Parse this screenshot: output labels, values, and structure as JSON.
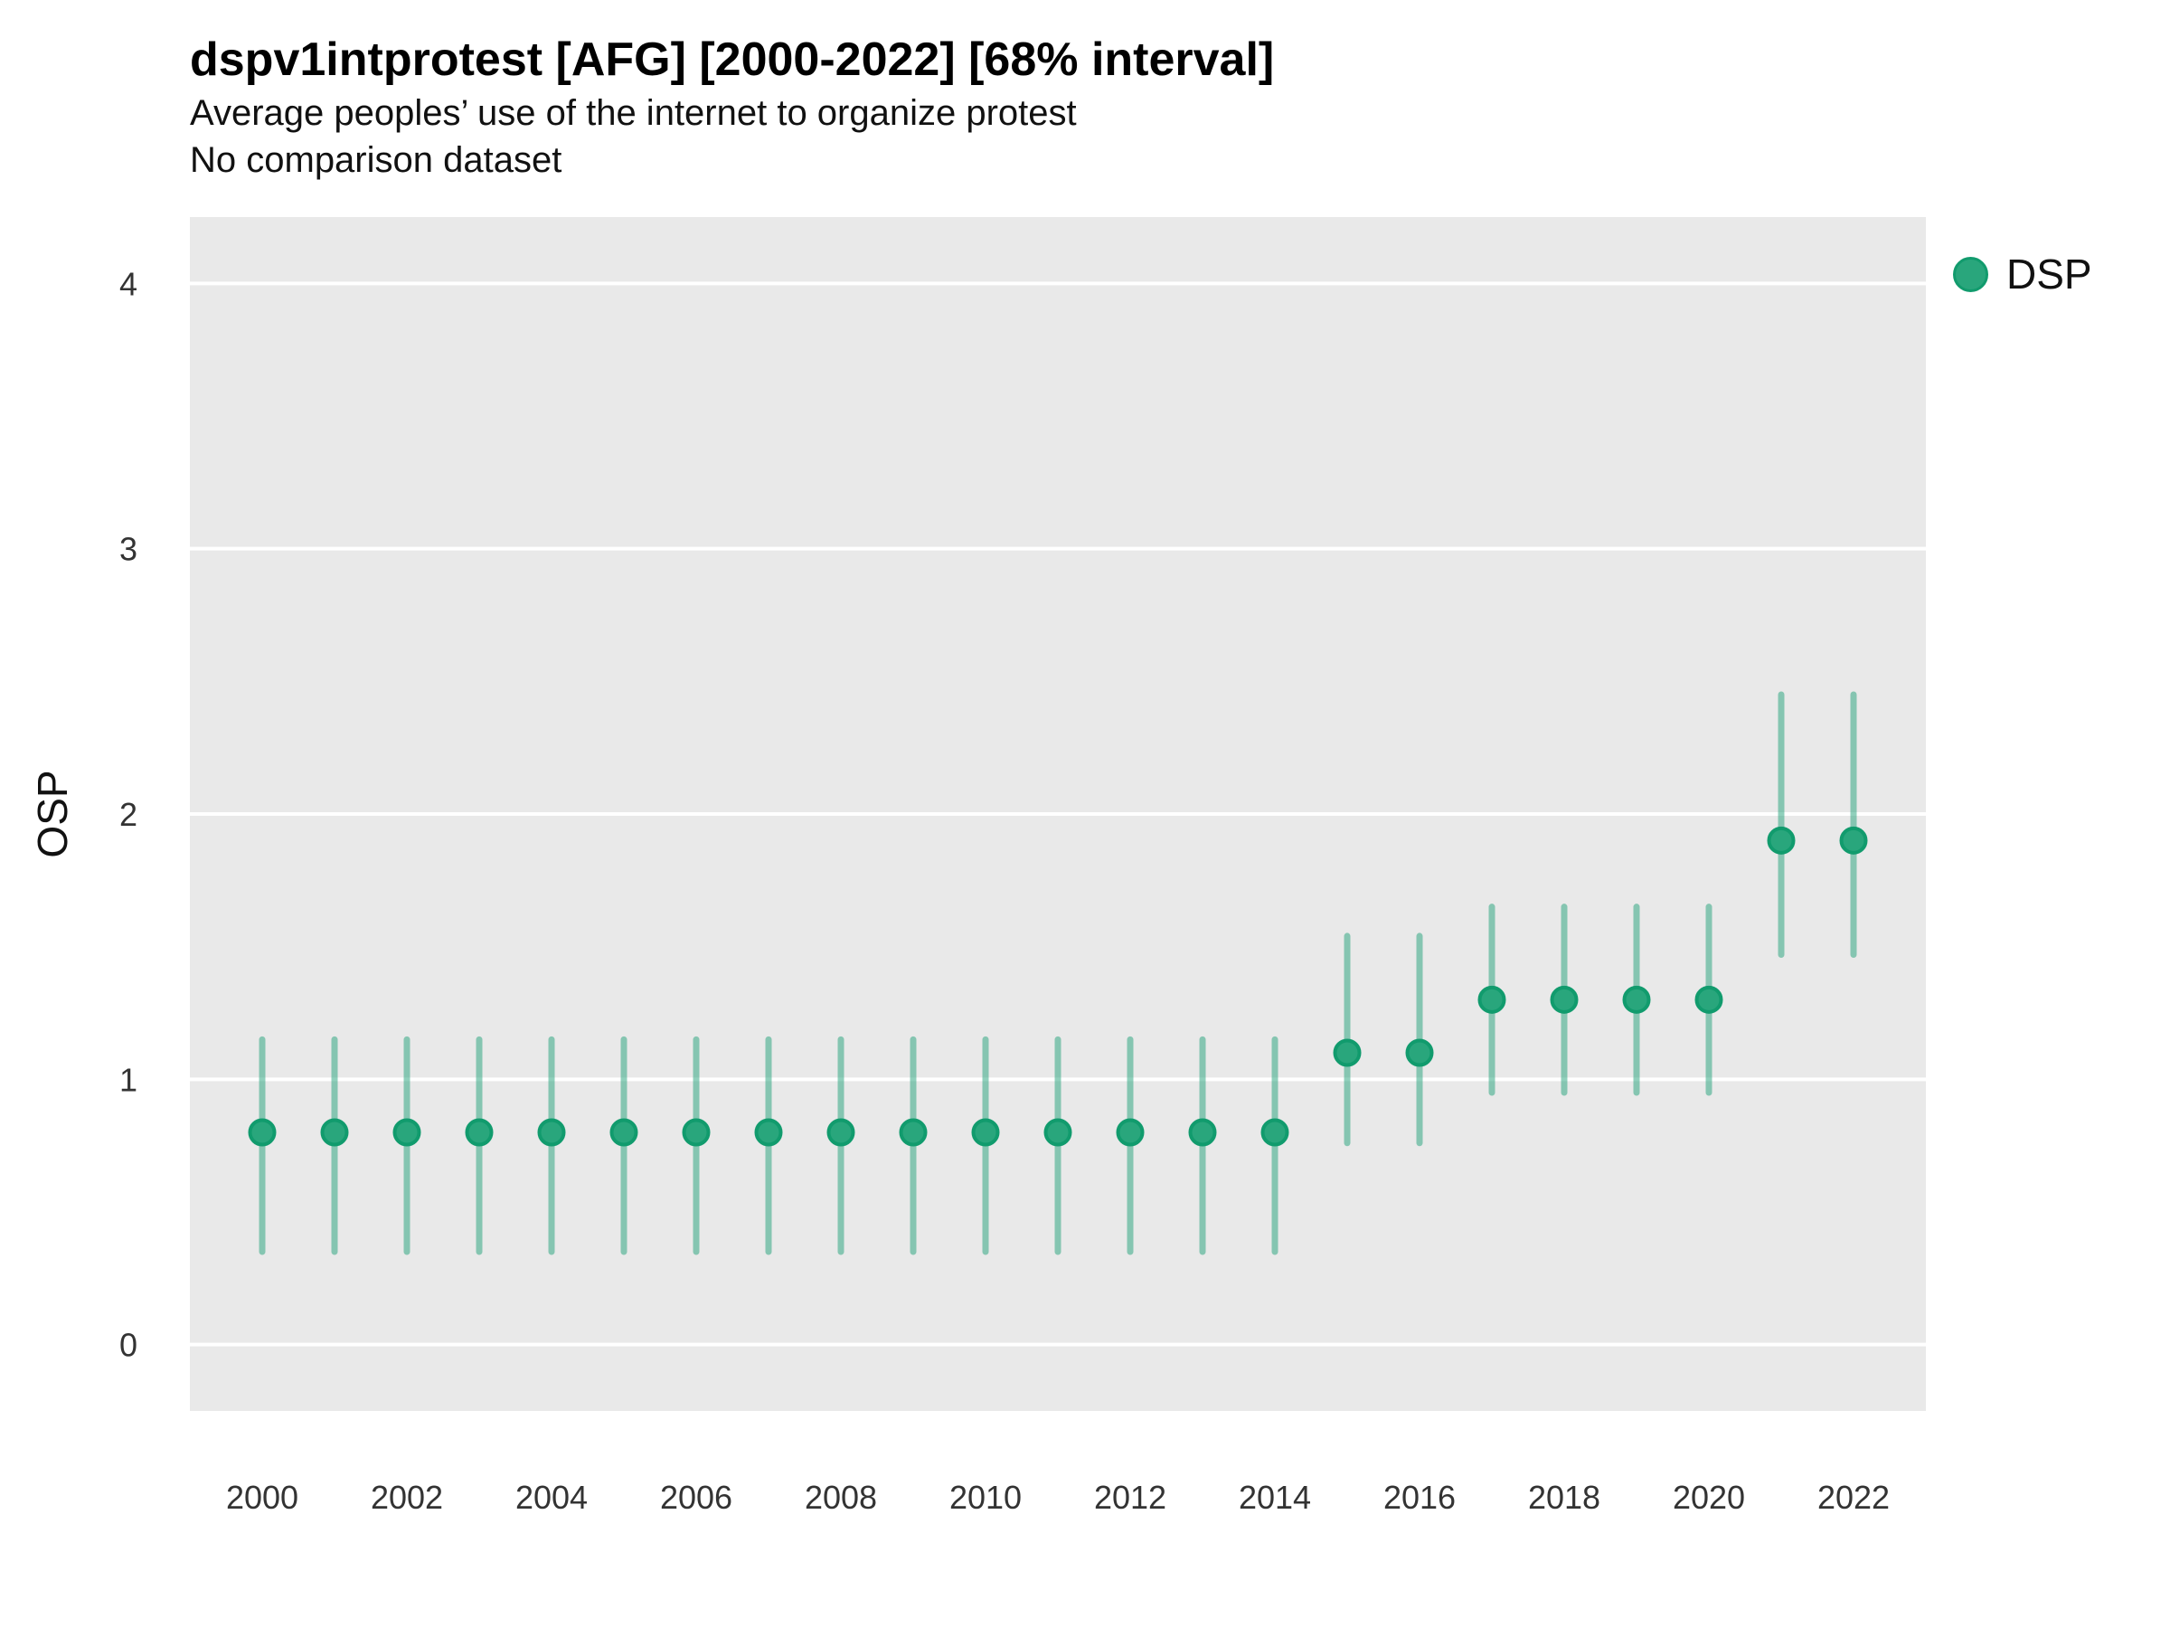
{
  "header": {
    "title": "dspv1intprotest [AFG] [2000-2022] [68% interval]",
    "subtitle": "Average peoples’ use of the internet to organize protest",
    "note": "No comparison dataset"
  },
  "legend": {
    "label": "DSP",
    "marker_color": "#29a67c"
  },
  "chart_data": {
    "type": "scatter",
    "title": "dspv1intprotest [AFG] [2000-2022] [68% interval]",
    "subtitle": "Average peoples’ use of the internet to organize protest",
    "note": "No comparison dataset",
    "xlabel": "",
    "ylabel": "OSP",
    "interval_label": "68% interval",
    "grid": "horizontal-major-only",
    "legend_position": "right",
    "xlim": [
      1999,
      2023
    ],
    "ylim": [
      -0.25,
      4.25
    ],
    "yticks": [
      0,
      1,
      2,
      3,
      4
    ],
    "xticks": [
      2000,
      2002,
      2004,
      2006,
      2008,
      2010,
      2012,
      2014,
      2016,
      2018,
      2020,
      2022
    ],
    "series": [
      {
        "name": "DSP",
        "x": [
          2000,
          2001,
          2002,
          2003,
          2004,
          2005,
          2006,
          2007,
          2008,
          2009,
          2010,
          2011,
          2012,
          2013,
          2014,
          2015,
          2016,
          2017,
          2018,
          2019,
          2020,
          2021,
          2022
        ],
        "y": [
          0.8,
          0.8,
          0.8,
          0.8,
          0.8,
          0.8,
          0.8,
          0.8,
          0.8,
          0.8,
          0.8,
          0.8,
          0.8,
          0.8,
          0.8,
          1.1,
          1.1,
          1.3,
          1.3,
          1.3,
          1.3,
          1.9,
          1.9
        ],
        "low": [
          0.35,
          0.35,
          0.35,
          0.35,
          0.35,
          0.35,
          0.35,
          0.35,
          0.35,
          0.35,
          0.35,
          0.35,
          0.35,
          0.35,
          0.35,
          0.76,
          0.76,
          0.95,
          0.95,
          0.95,
          0.95,
          1.47,
          1.47
        ],
        "high": [
          1.15,
          1.15,
          1.15,
          1.15,
          1.15,
          1.15,
          1.15,
          1.15,
          1.15,
          1.15,
          1.15,
          1.15,
          1.15,
          1.15,
          1.15,
          1.54,
          1.54,
          1.65,
          1.65,
          1.65,
          1.65,
          2.45,
          2.45
        ]
      }
    ],
    "colors": {
      "point_fill": "#29a67c",
      "point_stroke": "#119b6d",
      "errorbar": "rgba(33,161,121,0.5)",
      "panel_bg": "#e9e9e9",
      "gridline": "#ffffff",
      "tick_text": "#333333"
    }
  }
}
